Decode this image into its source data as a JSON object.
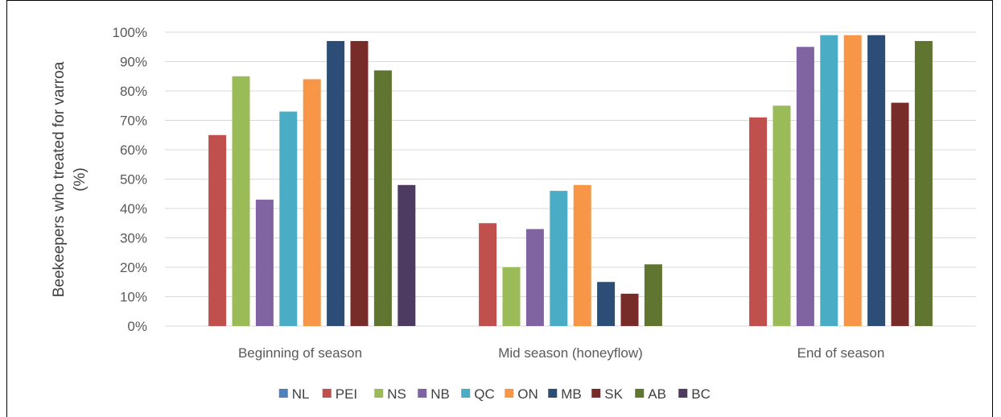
{
  "chart_data": {
    "type": "bar",
    "categories": [
      "Beginning of season",
      "Mid season (honeyflow)",
      "End of season"
    ],
    "series": [
      {
        "name": "NL",
        "color": "#4F81BD",
        "values": [
          0,
          0,
          0
        ]
      },
      {
        "name": "PEI",
        "color": "#C0504D",
        "values": [
          65,
          35,
          71
        ]
      },
      {
        "name": "NS",
        "color": "#9BBB59",
        "values": [
          85,
          20,
          75
        ]
      },
      {
        "name": "NB",
        "color": "#8064A2",
        "values": [
          43,
          33,
          95
        ]
      },
      {
        "name": "QC",
        "color": "#4BACC6",
        "values": [
          73,
          46,
          99
        ]
      },
      {
        "name": "ON",
        "color": "#F79646",
        "values": [
          84,
          48,
          99
        ]
      },
      {
        "name": "MB",
        "color": "#2C4D75",
        "values": [
          97,
          15,
          99
        ]
      },
      {
        "name": "SK",
        "color": "#772C2A",
        "values": [
          97,
          11,
          76
        ]
      },
      {
        "name": "AB",
        "color": "#5F7530",
        "values": [
          87,
          21,
          97
        ]
      },
      {
        "name": "BC",
        "color": "#4D3B62",
        "values": [
          48,
          0,
          0
        ]
      }
    ],
    "ylabel_lines": [
      "Beekeepers who treated for varroa",
      "(%)"
    ],
    "yticks": [
      "0%",
      "10%",
      "20%",
      "30%",
      "40%",
      "50%",
      "60%",
      "70%",
      "80%",
      "90%",
      "100%"
    ],
    "ylim": [
      0,
      100
    ],
    "grid": true,
    "legend_position": "bottom"
  }
}
